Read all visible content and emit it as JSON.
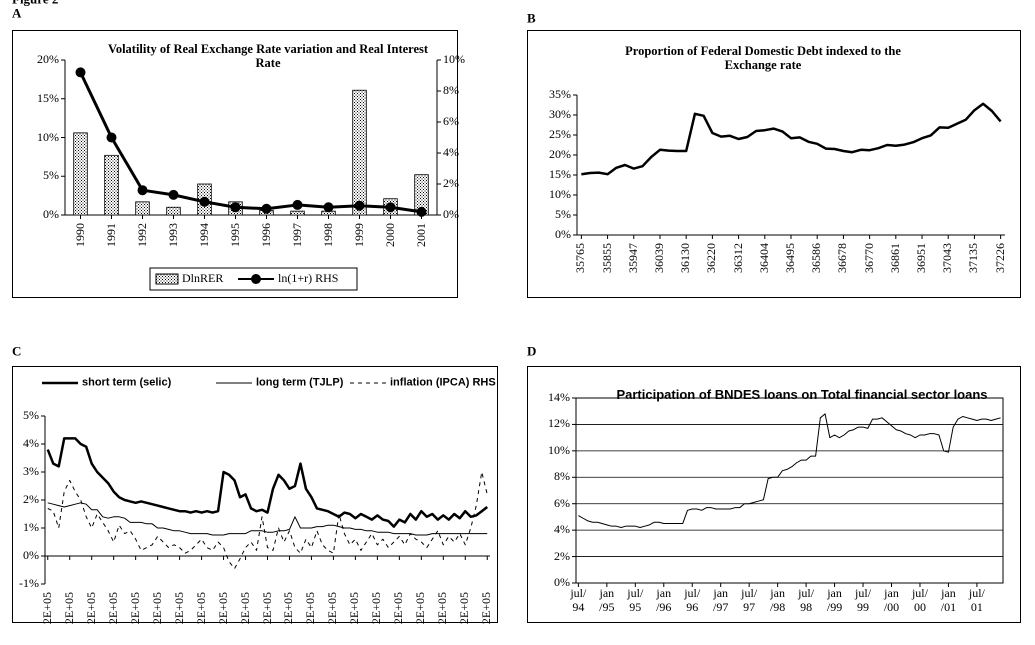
{
  "figure_title": "Figure 2",
  "chart_data": [
    {
      "panel": "A",
      "type": "combo",
      "title": "Volatility of Real Exchange Rate variation and Real Interest Rate",
      "categories": [
        "1990",
        "1991",
        "1992",
        "1993",
        "1994",
        "1995",
        "1996",
        "1997",
        "1998",
        "1999",
        "2000",
        "2001"
      ],
      "series": [
        {
          "name": "DlnRER",
          "type": "bar",
          "color": "#000000",
          "values": [
            10.6,
            7.7,
            1.7,
            1.0,
            4.0,
            1.7,
            0.6,
            0.5,
            0.5,
            16.1,
            2.1,
            5.2
          ]
        },
        {
          "name": "ln(1+r) RHS",
          "type": "line",
          "marker": "circle",
          "axis": "y2",
          "color": "#000000",
          "values": [
            9.2,
            5.0,
            1.6,
            1.3,
            0.85,
            0.5,
            0.4,
            0.65,
            0.5,
            0.6,
            0.5,
            0.2
          ]
        }
      ],
      "ylim": [
        0,
        20
      ],
      "yticks": [
        {
          "value": 0,
          "label": "0%"
        },
        {
          "value": 5,
          "label": "5%"
        },
        {
          "value": 10,
          "label": "10%"
        },
        {
          "value": 15,
          "label": "15%"
        },
        {
          "value": 20,
          "label": "20%"
        }
      ],
      "y2lim": [
        0,
        10
      ],
      "y2ticks": [
        {
          "value": 0,
          "label": "0%"
        },
        {
          "value": 2,
          "label": "2%"
        },
        {
          "value": 4,
          "label": "4%"
        },
        {
          "value": 6,
          "label": "6%"
        },
        {
          "value": 8,
          "label": "8%"
        },
        {
          "value": 10,
          "label": "10%"
        }
      ],
      "legend": "bottom"
    },
    {
      "panel": "B",
      "type": "line",
      "title": "Proportion of Federal Domestic Debt indexed to the Exchange rate",
      "categories": [
        "35765",
        null,
        null,
        "35855",
        null,
        null,
        "35947",
        null,
        null,
        "36039",
        null,
        null,
        "36130",
        null,
        null,
        "36220",
        null,
        null,
        "36312",
        null,
        null,
        "36404",
        null,
        null,
        "36495",
        null,
        null,
        "36586",
        null,
        null,
        "36678",
        null,
        null,
        "36770",
        null,
        null,
        "36861",
        null,
        null,
        "36951",
        null,
        null,
        "37043",
        null,
        null,
        "37135",
        null,
        null,
        "37226"
      ],
      "values": [
        15.2,
        15.5,
        15.6,
        15.2,
        16.8,
        17.5,
        16.6,
        17.2,
        19.5,
        21.3,
        21.1,
        21.0,
        21.0,
        30.3,
        29.8,
        25.5,
        24.6,
        24.8,
        24.0,
        24.5,
        26.0,
        26.2,
        26.6,
        25.9,
        24.2,
        24.4,
        23.3,
        22.8,
        21.6,
        21.5,
        21.0,
        20.7,
        21.3,
        21.2,
        21.7,
        22.5,
        22.3,
        22.6,
        23.2,
        24.2,
        24.9,
        26.9,
        26.8,
        27.8,
        28.8,
        31.2,
        32.8,
        31.0,
        28.4
      ],
      "color": "#000000",
      "line_width": 2.5,
      "ylim": [
        0,
        35
      ],
      "yticks": [
        {
          "value": 0,
          "label": "0%"
        },
        {
          "value": 5,
          "label": "5%"
        },
        {
          "value": 10,
          "label": "10%"
        },
        {
          "value": 15,
          "label": "15%"
        },
        {
          "value": 20,
          "label": "20%"
        },
        {
          "value": 25,
          "label": "25%"
        },
        {
          "value": 30,
          "label": "30%"
        },
        {
          "value": 35,
          "label": "35%"
        }
      ]
    },
    {
      "panel": "C",
      "type": "line",
      "categories": [
        "2E+05",
        null,
        null,
        null,
        "2E+05",
        null,
        null,
        null,
        "2E+05",
        null,
        null,
        null,
        "2E+05",
        null,
        null,
        null,
        "2E+05",
        null,
        null,
        null,
        "2E+05",
        null,
        null,
        null,
        "2E+05",
        null,
        null,
        null,
        "2E+05",
        null,
        null,
        null,
        "2E+05",
        null,
        null,
        null,
        "2E+05",
        null,
        null,
        null,
        "2E+05",
        null,
        null,
        null,
        "2E+05",
        null,
        null,
        null,
        "2E+05",
        null,
        null,
        null,
        "2E+05",
        null,
        null,
        null,
        "2E+05",
        null,
        null,
        null,
        "2E+05",
        null,
        null,
        null,
        "2E+05",
        null,
        null,
        null,
        "2E+05",
        null,
        null,
        null,
        "2E+05",
        null,
        null,
        null,
        "2E+05",
        null,
        null,
        null,
        "2E+05"
      ],
      "series": [
        {
          "name": "short term (selic)",
          "color": "#000000",
          "line_width": 2.5,
          "values": [
            3.8,
            3.3,
            3.2,
            4.2,
            4.2,
            4.2,
            4.0,
            3.9,
            3.3,
            3.0,
            2.8,
            2.6,
            2.3,
            2.1,
            2.0,
            1.95,
            1.9,
            1.95,
            1.9,
            1.85,
            1.8,
            1.75,
            1.7,
            1.65,
            1.6,
            1.6,
            1.55,
            1.6,
            1.55,
            1.6,
            1.55,
            1.6,
            3.0,
            2.9,
            2.7,
            2.1,
            2.2,
            1.7,
            1.6,
            1.65,
            1.55,
            2.4,
            2.9,
            2.7,
            2.4,
            2.5,
            3.3,
            2.4,
            2.1,
            1.7,
            1.65,
            1.6,
            1.5,
            1.4,
            1.55,
            1.5,
            1.35,
            1.5,
            1.4,
            1.3,
            1.45,
            1.3,
            1.25,
            1.05,
            1.3,
            1.2,
            1.5,
            1.3,
            1.6,
            1.4,
            1.5,
            1.3,
            1.45,
            1.3,
            1.5,
            1.35,
            1.6,
            1.4,
            1.45,
            1.6,
            1.75
          ]
        },
        {
          "name": "long term (TJLP)",
          "color": "#000000",
          "line_width": 1,
          "values": [
            1.9,
            1.85,
            1.8,
            1.75,
            1.8,
            1.85,
            1.9,
            1.85,
            1.65,
            1.65,
            1.4,
            1.35,
            1.4,
            1.4,
            1.35,
            1.2,
            1.2,
            1.2,
            1.15,
            1.15,
            1.0,
            1.0,
            0.95,
            0.9,
            0.9,
            0.85,
            0.8,
            0.8,
            0.8,
            0.8,
            0.75,
            0.75,
            0.75,
            0.8,
            0.8,
            0.8,
            0.8,
            0.9,
            0.9,
            0.9,
            0.85,
            0.85,
            0.9,
            0.9,
            0.95,
            1.4,
            1.0,
            1.0,
            1.0,
            1.05,
            1.05,
            1.1,
            1.1,
            1.05,
            1.0,
            1.0,
            0.95,
            0.95,
            0.9,
            0.9,
            0.85,
            0.85,
            0.85,
            0.8,
            0.8,
            0.8,
            0.8,
            0.75,
            0.75,
            0.75,
            0.8,
            0.8,
            0.8,
            0.8,
            0.8,
            0.8,
            0.8,
            0.8,
            0.8,
            0.8,
            0.8
          ]
        },
        {
          "name": "inflation (IPCA) RHS",
          "color": "#000000",
          "line_width": 1,
          "style": "dashed",
          "values": [
            1.7,
            1.6,
            1.0,
            2.3,
            2.7,
            2.3,
            2.0,
            1.4,
            1.0,
            1.5,
            1.2,
            0.9,
            0.5,
            1.1,
            0.8,
            0.9,
            0.6,
            0.2,
            0.3,
            0.4,
            0.7,
            0.5,
            0.3,
            0.4,
            0.3,
            0.1,
            0.2,
            0.4,
            0.6,
            0.3,
            0.2,
            0.5,
            0.3,
            -0.2,
            -0.45,
            -0.1,
            0.3,
            0.5,
            0.2,
            1.4,
            0.3,
            0.2,
            1.0,
            0.5,
            0.9,
            0.3,
            0.1,
            0.6,
            0.3,
            0.9,
            0.4,
            0.2,
            0.1,
            1.5,
            0.8,
            0.4,
            0.6,
            0.2,
            0.5,
            0.8,
            0.4,
            0.6,
            0.3,
            0.5,
            0.7,
            0.4,
            0.8,
            0.6,
            0.5,
            0.3,
            0.6,
            0.9,
            0.4,
            0.7,
            0.5,
            0.8,
            0.4,
            1.0,
            1.8,
            3.0,
            2.2
          ]
        }
      ],
      "ylim": [
        -1,
        5
      ],
      "yticks": [
        {
          "value": -1,
          "label": "-1%"
        },
        {
          "value": 0,
          "label": "0%"
        },
        {
          "value": 1,
          "label": "1%"
        },
        {
          "value": 2,
          "label": "2%"
        },
        {
          "value": 3,
          "label": "3%"
        },
        {
          "value": 4,
          "label": "4%"
        },
        {
          "value": 5,
          "label": "5%"
        }
      ],
      "legend": "top"
    },
    {
      "panel": "D",
      "type": "line",
      "title": "Participation of BNDES loans on Total financial sector loans",
      "categories": [
        "jul/\n94",
        null,
        null,
        null,
        null,
        null,
        "jan\n/95",
        null,
        null,
        null,
        null,
        null,
        "jul/\n95",
        null,
        null,
        null,
        null,
        null,
        "jan\n/96",
        null,
        null,
        null,
        null,
        null,
        "jul/\n96",
        null,
        null,
        null,
        null,
        null,
        "jan\n/97",
        null,
        null,
        null,
        null,
        null,
        "jul/\n97",
        null,
        null,
        null,
        null,
        null,
        "jan\n/98",
        null,
        null,
        null,
        null,
        null,
        "jul/\n98",
        null,
        null,
        null,
        null,
        null,
        "jan\n/99",
        null,
        null,
        null,
        null,
        null,
        "jul/\n99",
        null,
        null,
        null,
        null,
        null,
        "jan\n/00",
        null,
        null,
        null,
        null,
        null,
        "jul/\n00",
        null,
        null,
        null,
        null,
        null,
        "jan\n/01",
        null,
        null,
        null,
        null,
        null,
        "jul/\n01",
        null,
        null,
        null,
        null,
        null
      ],
      "values": [
        5.1,
        4.9,
        4.7,
        4.6,
        4.6,
        4.5,
        4.4,
        4.3,
        4.3,
        4.2,
        4.3,
        4.3,
        4.3,
        4.2,
        4.3,
        4.4,
        4.6,
        4.6,
        4.5,
        4.5,
        4.5,
        4.5,
        4.5,
        5.5,
        5.6,
        5.6,
        5.5,
        5.7,
        5.7,
        5.6,
        5.6,
        5.6,
        5.6,
        5.7,
        5.7,
        6.0,
        6.0,
        6.1,
        6.2,
        6.3,
        7.9,
        8.0,
        8.0,
        8.5,
        8.6,
        8.8,
        9.1,
        9.3,
        9.3,
        9.6,
        9.6,
        12.5,
        12.8,
        11.0,
        11.2,
        11.0,
        11.2,
        11.5,
        11.6,
        11.8,
        11.8,
        11.7,
        12.4,
        12.4,
        12.5,
        12.2,
        11.9,
        11.6,
        11.5,
        11.3,
        11.2,
        11.0,
        11.2,
        11.2,
        11.3,
        11.3,
        11.2,
        10.0,
        9.9,
        11.8,
        12.4,
        12.6,
        12.5,
        12.4,
        12.3,
        12.4,
        12.4,
        12.3,
        12.4,
        12.5
      ],
      "color": "#000000",
      "line_width": 1,
      "grid": true,
      "ylim": [
        0,
        14
      ],
      "yticks": [
        {
          "value": 0,
          "label": "0%"
        },
        {
          "value": 2,
          "label": "2%"
        },
        {
          "value": 4,
          "label": "4%"
        },
        {
          "value": 6,
          "label": "6%"
        },
        {
          "value": 8,
          "label": "8%"
        },
        {
          "value": 10,
          "label": "10%"
        },
        {
          "value": 12,
          "label": "12%"
        },
        {
          "value": 14,
          "label": "14%"
        }
      ]
    }
  ]
}
